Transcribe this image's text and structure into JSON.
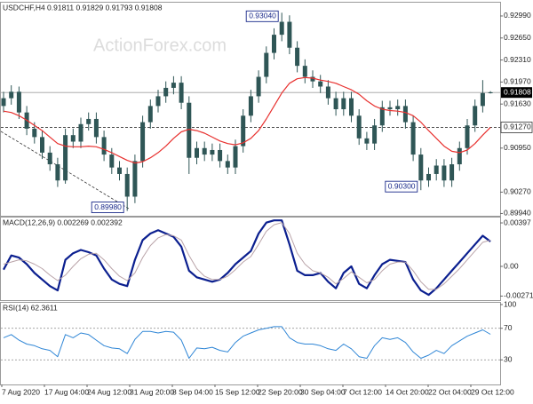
{
  "chart_data": [
    {
      "type": "candlestick",
      "title": "USDCHF,H4 0.91811 0.91829 0.91793 0.91808",
      "watermark": "ActionForex.com",
      "color": "#2f5656",
      "open": [
        0.916,
        0.9172,
        0.9182,
        0.915,
        0.9125,
        0.9112,
        0.9088,
        0.907,
        0.9045,
        0.9115,
        0.9105,
        0.9132,
        0.914,
        0.9112,
        0.9085,
        0.9065,
        0.9055,
        0.902,
        0.9075,
        0.9135,
        0.916,
        0.9175,
        0.9188,
        0.9196,
        0.9165,
        0.908,
        0.9095,
        0.9085,
        0.9092,
        0.9075,
        0.9065,
        0.9098,
        0.9145,
        0.9175,
        0.9205,
        0.9242,
        0.927,
        0.929,
        0.925,
        0.9222,
        0.9205,
        0.9198,
        0.919,
        0.9172,
        0.9155,
        0.9172,
        0.9145,
        0.911,
        0.9102,
        0.913,
        0.9158,
        0.9155,
        0.916,
        0.9135,
        0.9085,
        0.9045,
        0.9055,
        0.9068,
        0.9045,
        0.907,
        0.9095,
        0.913,
        0.916,
        0.91811
      ],
      "high": [
        0.9182,
        0.9192,
        0.919,
        0.916,
        0.9135,
        0.9122,
        0.9098,
        0.908,
        0.9125,
        0.9125,
        0.9142,
        0.915,
        0.915,
        0.9122,
        0.9095,
        0.9075,
        0.9065,
        0.9085,
        0.9145,
        0.917,
        0.9185,
        0.9198,
        0.9206,
        0.9206,
        0.9175,
        0.9105,
        0.9105,
        0.9102,
        0.9102,
        0.9085,
        0.9108,
        0.9155,
        0.9185,
        0.9215,
        0.9252,
        0.928,
        0.9304,
        0.93,
        0.926,
        0.9232,
        0.9215,
        0.9208,
        0.92,
        0.9182,
        0.9182,
        0.9182,
        0.9155,
        0.912,
        0.914,
        0.9168,
        0.9168,
        0.917,
        0.917,
        0.9145,
        0.9095,
        0.9065,
        0.9078,
        0.9078,
        0.908,
        0.9105,
        0.914,
        0.917,
        0.92,
        0.91829
      ],
      "low": [
        0.915,
        0.9162,
        0.914,
        0.9115,
        0.9102,
        0.9078,
        0.906,
        0.9035,
        0.904,
        0.9095,
        0.9095,
        0.9122,
        0.9102,
        0.9075,
        0.9055,
        0.9045,
        0.8998,
        0.901,
        0.9065,
        0.9125,
        0.915,
        0.9165,
        0.9178,
        0.9155,
        0.9055,
        0.907,
        0.9075,
        0.9075,
        0.9065,
        0.9055,
        0.9055,
        0.9088,
        0.9135,
        0.9165,
        0.9195,
        0.9232,
        0.926,
        0.924,
        0.9212,
        0.9195,
        0.9188,
        0.918,
        0.9162,
        0.9145,
        0.9145,
        0.9135,
        0.91,
        0.9092,
        0.9092,
        0.912,
        0.9145,
        0.9145,
        0.9125,
        0.9075,
        0.903,
        0.9035,
        0.9045,
        0.9035,
        0.9035,
        0.906,
        0.9085,
        0.912,
        0.915,
        0.91793
      ],
      "close": [
        0.9172,
        0.9182,
        0.915,
        0.9125,
        0.9112,
        0.9088,
        0.907,
        0.9045,
        0.9115,
        0.9105,
        0.9132,
        0.914,
        0.9112,
        0.9085,
        0.9065,
        0.9055,
        0.902,
        0.9075,
        0.9135,
        0.916,
        0.9175,
        0.9188,
        0.9196,
        0.9165,
        0.908,
        0.9095,
        0.9085,
        0.9092,
        0.9075,
        0.9065,
        0.9098,
        0.9145,
        0.9175,
        0.9205,
        0.9242,
        0.927,
        0.929,
        0.925,
        0.9222,
        0.9205,
        0.9198,
        0.919,
        0.9172,
        0.9155,
        0.9172,
        0.9145,
        0.911,
        0.9102,
        0.913,
        0.9158,
        0.9155,
        0.916,
        0.9135,
        0.9085,
        0.9045,
        0.9055,
        0.9068,
        0.9045,
        0.907,
        0.9095,
        0.913,
        0.916,
        0.918,
        0.91808
      ],
      "series": [
        {
          "color": "#e8312f",
          "values": [
            0.9152,
            0.915,
            0.9145,
            0.9138,
            0.913,
            0.9122,
            0.9112,
            0.9102,
            0.9098,
            0.9097,
            0.9097,
            0.9098,
            0.9097,
            0.9093,
            0.9088,
            0.9082,
            0.9076,
            0.9072,
            0.9074,
            0.908,
            0.9088,
            0.9098,
            0.911,
            0.912,
            0.9124,
            0.9122,
            0.9118,
            0.9112,
            0.9106,
            0.9102,
            0.91,
            0.9103,
            0.911,
            0.9122,
            0.914,
            0.916,
            0.918,
            0.9195,
            0.9202,
            0.9204,
            0.9203,
            0.92,
            0.9198,
            0.9195,
            0.919,
            0.9185,
            0.9178,
            0.9168,
            0.916,
            0.9155,
            0.9153,
            0.9152,
            0.915,
            0.9145,
            0.9135,
            0.9122,
            0.911,
            0.9098,
            0.909,
            0.9088,
            0.9092,
            0.9102,
            0.9115,
            0.9127
          ]
        }
      ],
      "ylim": [
        0.89905,
        0.93168
      ],
      "yticks": [
        {
          "value": 0.9299,
          "label": "0.92990"
        },
        {
          "value": 0.9265,
          "label": "0.92650"
        },
        {
          "value": 0.9231,
          "label": "0.92310"
        },
        {
          "value": 0.9197,
          "label": "0.91970"
        },
        {
          "value": 0.9163,
          "label": "0.91630"
        },
        {
          "value": 0.9095,
          "label": "0.90950"
        },
        {
          "value": 0.9027,
          "label": "0.90270"
        },
        {
          "value": 0.8994,
          "label": "0.89940"
        }
      ],
      "last_price": 0.91808,
      "level": {
        "value": 0.9127,
        "label": "0.91270"
      },
      "annotations": [
        {
          "value": 0.9304,
          "label": "0.93040"
        },
        {
          "value": 0.8998,
          "label": "0.89980"
        },
        {
          "value": 0.903,
          "label": "0.90300"
        }
      ]
    },
    {
      "type": "line",
      "title": "MACD(12,26,9) 0.002269 0.002392",
      "series": [
        {
          "color": "#0b1f8f",
          "width": 2.2,
          "values": [
            -0.0003,
            0.001,
            0.0008,
            0.0002,
            -0.0006,
            -0.0012,
            -0.0018,
            -0.0022,
            0.0006,
            0.0012,
            0.0015,
            0.0013,
            0.001,
            -0.0002,
            -0.0012,
            -0.0016,
            -0.0018,
            0.0006,
            0.0024,
            0.003,
            0.0033,
            0.003,
            0.0027,
            0.0018,
            -0.0004,
            -0.001,
            -0.0012,
            -0.0014,
            -0.0012,
            -0.0006,
            0.0002,
            0.0008,
            0.0014,
            0.003,
            0.004,
            0.0042,
            0.0042,
            0.002,
            -0.0004,
            -0.0008,
            -0.0008,
            -0.0006,
            -0.0014,
            -0.002,
            -0.0006,
            0.0,
            -0.0016,
            -0.002,
            -0.0008,
            0.0002,
            0.0006,
            0.0005,
            0.0004,
            -0.0012,
            -0.0022,
            -0.0026,
            -0.002,
            -0.0012,
            -0.0004,
            0.0004,
            0.0012,
            0.002,
            0.0028,
            0.002269
          ]
        },
        {
          "color": "#b9a3a8",
          "width": 1,
          "values": [
            0.0002,
            0.0004,
            0.0006,
            0.0005,
            0.0002,
            -0.0002,
            -0.0008,
            -0.0013,
            -0.0008,
            0.0,
            0.0007,
            0.0011,
            0.0012,
            0.0006,
            -0.0002,
            -0.0009,
            -0.0013,
            -0.0006,
            0.0008,
            0.0019,
            0.0026,
            0.0029,
            0.0028,
            0.0024,
            0.001,
            -0.0002,
            -0.0009,
            -0.0012,
            -0.0012,
            -0.0009,
            -0.0003,
            0.0004,
            0.0009,
            0.002,
            0.0032,
            0.0038,
            0.004,
            0.003,
            0.0012,
            0.0002,
            -0.0004,
            -0.0006,
            -0.001,
            -0.0016,
            -0.0011,
            -0.0005,
            -0.001,
            -0.0015,
            -0.0012,
            -0.0004,
            0.0002,
            0.0004,
            0.0004,
            -0.0004,
            -0.0014,
            -0.0021,
            -0.0021,
            -0.0016,
            -0.0009,
            -0.0002,
            0.0006,
            0.0014,
            0.0022,
            0.002392
          ]
        }
      ],
      "ylim": [
        -0.00308,
        0.00446
      ],
      "yticks": [
        0.00397,
        {
          "value": 0,
          "label": "0.00"
        },
        -0.002713
      ]
    },
    {
      "type": "line",
      "title": "RSI(14) 62.3611",
      "series": [
        {
          "color": "#2f86d6",
          "width": 1,
          "values": [
            58,
            62,
            55,
            50,
            48,
            44,
            42,
            34,
            62,
            58,
            64,
            62,
            55,
            48,
            45,
            44,
            38,
            56,
            66,
            66,
            64,
            66,
            65,
            55,
            32,
            45,
            44,
            46,
            42,
            40,
            52,
            60,
            64,
            68,
            70,
            72,
            72,
            58,
            52,
            50,
            50,
            48,
            44,
            42,
            50,
            44,
            34,
            32,
            48,
            58,
            56,
            58,
            52,
            40,
            32,
            36,
            42,
            38,
            48,
            54,
            60,
            64,
            68,
            62.3611
          ]
        }
      ],
      "ylim": [
        0,
        100
      ],
      "yticks": [
        100,
        70,
        30
      ],
      "x_labels": [
        "7 Aug 2020",
        "17 Aug 04:00",
        "24 Aug 12:00",
        "31 Aug 20:00",
        "8 Sep 04:00",
        "15 Sep 12:00",
        "22 Sep 20:00",
        "30 Sep 04:00",
        "7 Oct 12:00",
        "14 Oct 20:00",
        "22 Oct 04:00",
        "29 Oct 12:00"
      ]
    }
  ]
}
